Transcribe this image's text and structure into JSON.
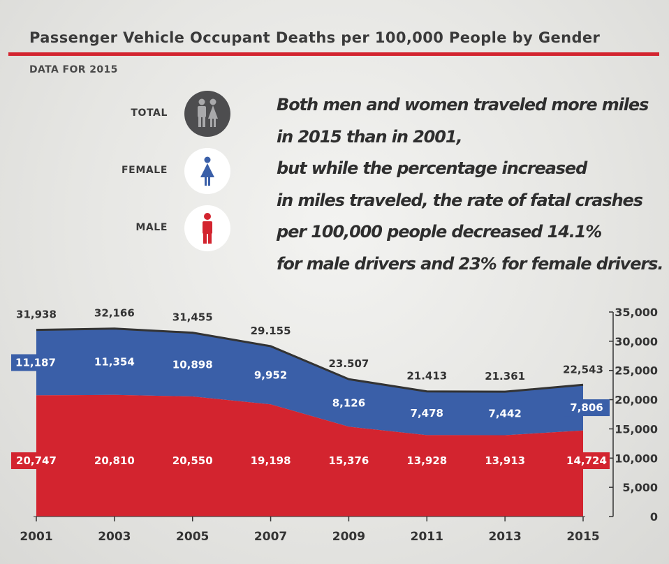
{
  "header": {
    "title": "Passenger Vehicle Occupant Deaths per 100,000 People by Gender",
    "subtitle": "DATA FOR 2015"
  },
  "legend": {
    "items": [
      {
        "label": "TOTAL",
        "icon": "couple-icon",
        "color": "#4d4d4f"
      },
      {
        "label": "FEMALE",
        "icon": "female-icon",
        "color": "#3a5fa8"
      },
      {
        "label": "MALE",
        "icon": "male-icon",
        "color": "#d3242f"
      }
    ]
  },
  "headline": {
    "lines": [
      "Both men and women traveled more miles",
      "in 2015 than in 2001,",
      "but while the percentage increased",
      "in miles traveled, the rate of fatal crashes",
      "per 100,000 people decreased 14.1%",
      "for male drivers and 23% for female drivers."
    ]
  },
  "colors": {
    "male": "#d3242f",
    "female": "#3a5fa8",
    "total_line": "#333333",
    "accent_rule": "#d3242f"
  },
  "chart_data": {
    "type": "area",
    "x": [
      "2001",
      "2003",
      "2005",
      "2007",
      "2009",
      "2011",
      "2013",
      "2015"
    ],
    "series": [
      {
        "name": "MALE",
        "values": [
          20747,
          20810,
          20550,
          19198,
          15376,
          13928,
          13913,
          14724
        ],
        "labels": [
          "20,747",
          "20,810",
          "20,550",
          "19,198",
          "15,376",
          "13,928",
          "13,913",
          "14,724"
        ]
      },
      {
        "name": "FEMALE",
        "values": [
          11187,
          11354,
          10898,
          9952,
          8126,
          7478,
          7442,
          7806
        ],
        "labels": [
          "11,187",
          "11,354",
          "10,898",
          "9,952",
          "8,126",
          "7,478",
          "7,442",
          "7,806"
        ]
      },
      {
        "name": "TOTAL",
        "values": [
          31938,
          32166,
          31455,
          29155,
          23507,
          21413,
          21361,
          22543
        ],
        "labels": [
          "31,938",
          "32,166",
          "31,455",
          "29.155",
          "23.507",
          "21.413",
          "21.361",
          "22,543"
        ]
      }
    ],
    "yticks": [
      0,
      5000,
      10000,
      15000,
      20000,
      25000,
      30000,
      35000
    ],
    "ytick_labels": [
      "0",
      "5,000",
      "10,000",
      "15,000",
      "20,000",
      "25,000",
      "30,000",
      "35,000"
    ],
    "ylim": [
      0,
      35000
    ],
    "stacked": true,
    "grid": false,
    "y_axis_side": "right"
  }
}
